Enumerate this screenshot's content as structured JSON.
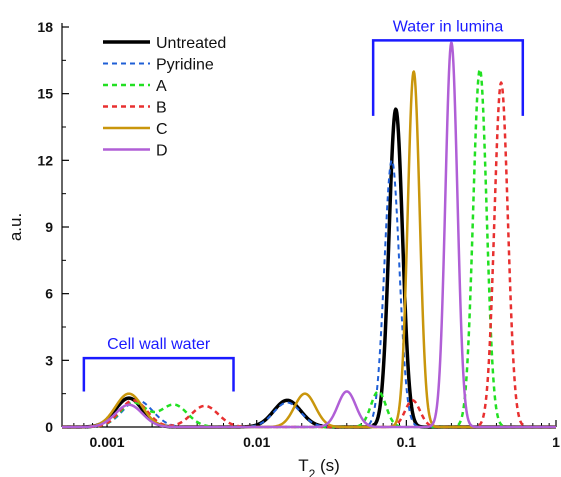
{
  "chart_data": {
    "type": "line",
    "title": "",
    "xlabel": "T",
    "xlabel_sub": "2",
    "xlabel_unit": " (s)",
    "ylabel": "a.u.",
    "x_scale": "log",
    "xlim": [
      0.0005,
      1
    ],
    "ylim": [
      0,
      18
    ],
    "x_ticks": [
      {
        "value": 0.001,
        "label": "0.001"
      },
      {
        "value": 0.01,
        "label": "0.01"
      },
      {
        "value": 0.1,
        "label": "0.1"
      },
      {
        "value": 1,
        "label": "1"
      }
    ],
    "y_ticks": [
      {
        "value": 0,
        "label": "0"
      },
      {
        "value": 3,
        "label": "3"
      },
      {
        "value": 6,
        "label": "6"
      },
      {
        "value": 9,
        "label": "9"
      },
      {
        "value": 12,
        "label": "12"
      },
      {
        "value": 15,
        "label": "15"
      },
      {
        "value": 18,
        "label": "18"
      }
    ],
    "grid": false,
    "legend_position": "top-left",
    "series": [
      {
        "name": "Untreated",
        "color": "#000000",
        "dash": "solid",
        "width": 3.5,
        "peaks": [
          {
            "center": 0.0014,
            "height": 1.3,
            "width": 0.09
          },
          {
            "center": 0.016,
            "height": 1.2,
            "width": 0.09
          },
          {
            "center": 0.085,
            "height": 14.3,
            "width": 0.045
          }
        ]
      },
      {
        "name": "Pyridine",
        "color": "#1f5fd6",
        "dash": "dashed",
        "width": 2,
        "peaks": [
          {
            "center": 0.0016,
            "height": 1.2,
            "width": 0.1
          },
          {
            "center": 0.016,
            "height": 1.1,
            "width": 0.09
          },
          {
            "center": 0.08,
            "height": 12.0,
            "width": 0.05
          }
        ]
      },
      {
        "name": "A",
        "color": "#22e022",
        "dash": "dashed",
        "width": 2.5,
        "peaks": [
          {
            "center": 0.0015,
            "height": 1.1,
            "width": 0.09
          },
          {
            "center": 0.0028,
            "height": 1.0,
            "width": 0.09
          },
          {
            "center": 0.065,
            "height": 1.6,
            "width": 0.05
          },
          {
            "center": 0.31,
            "height": 16.1,
            "width": 0.045
          }
        ]
      },
      {
        "name": "B",
        "color": "#e83030",
        "dash": "dashed",
        "width": 2.5,
        "peaks": [
          {
            "center": 0.0015,
            "height": 1.2,
            "width": 0.09
          },
          {
            "center": 0.0045,
            "height": 0.95,
            "width": 0.09
          },
          {
            "center": 0.11,
            "height": 1.2,
            "width": 0.05
          },
          {
            "center": 0.43,
            "height": 15.5,
            "width": 0.045
          }
        ]
      },
      {
        "name": "C",
        "color": "#c9960c",
        "dash": "solid",
        "width": 2.5,
        "peaks": [
          {
            "center": 0.0014,
            "height": 1.5,
            "width": 0.09
          },
          {
            "center": 0.021,
            "height": 1.5,
            "width": 0.07
          },
          {
            "center": 0.112,
            "height": 16.0,
            "width": 0.04
          }
        ]
      },
      {
        "name": "D",
        "color": "#b05fd6",
        "dash": "solid",
        "width": 2.5,
        "peaks": [
          {
            "center": 0.0014,
            "height": 1.0,
            "width": 0.09
          },
          {
            "center": 0.04,
            "height": 1.6,
            "width": 0.06
          },
          {
            "center": 0.2,
            "height": 17.3,
            "width": 0.04
          }
        ]
      }
    ],
    "annotations": [
      {
        "text": "Cell wall water",
        "x_from": 0.0007,
        "x_to": 0.007,
        "y": 3.1,
        "tick_to": 1.6,
        "color": "#1a1aff"
      },
      {
        "text": "Water in lumina",
        "x_from": 0.06,
        "x_to": 0.6,
        "y": 17.4,
        "tick_to": 14.0,
        "color": "#1a1aff"
      }
    ]
  }
}
